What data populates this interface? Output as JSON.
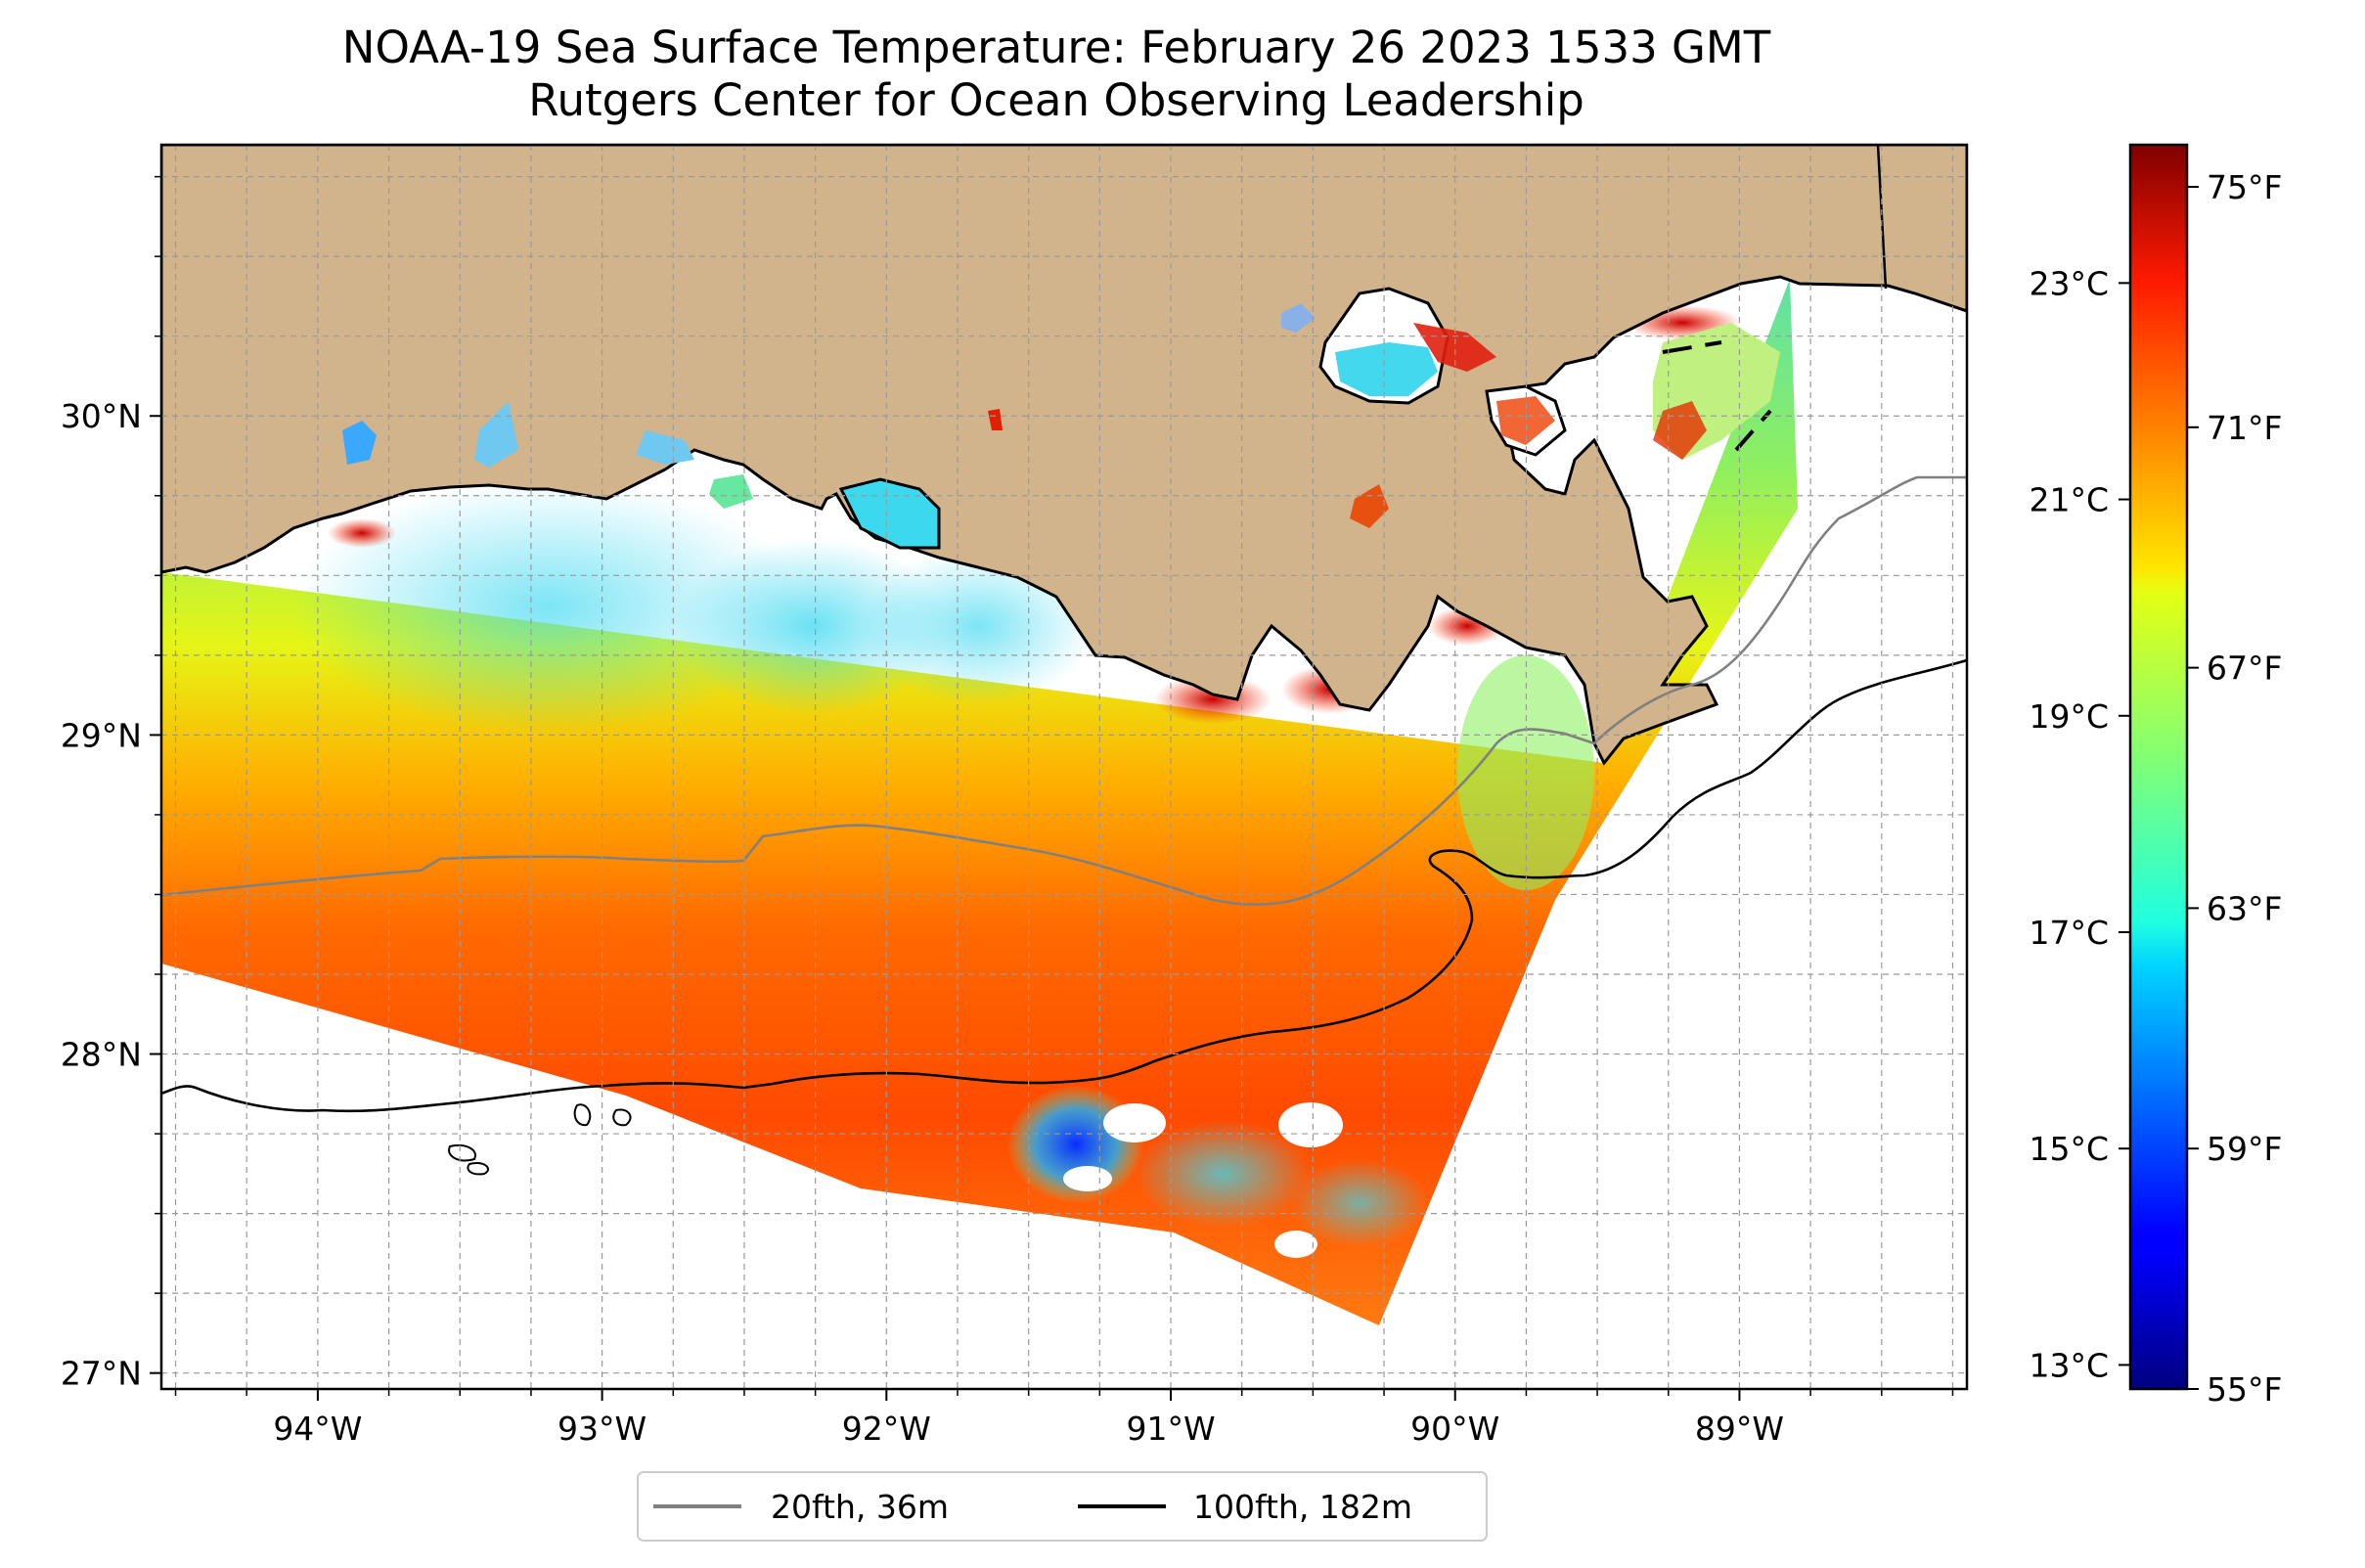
{
  "title": "NOAA-19 Sea Surface Temperature: February 26 2023 1533 GMT",
  "subtitle": "Rutgers Center for Ocean Observing Leadership",
  "map": {
    "lon_range": [
      -94.55,
      -88.2
    ],
    "lat_range": [
      26.95,
      30.85
    ],
    "lon_ticks": [
      "94°W",
      "93°W",
      "92°W",
      "91°W",
      "90°W",
      "89°W"
    ],
    "lon_tick_values": [
      -94,
      -93,
      -92,
      -91,
      -90,
      -89
    ],
    "lat_ticks": [
      "27°N",
      "28°N",
      "29°N",
      "30°N"
    ],
    "lat_tick_values": [
      27,
      28,
      29,
      30
    ],
    "grid": true,
    "land_color": "#d2b48c",
    "no_data_color": "#ffffff"
  },
  "colorbar": {
    "colormap": "jet",
    "celsius_ticks": [
      "13°C",
      "15°C",
      "17°C",
      "19°C",
      "21°C",
      "23°C"
    ],
    "celsius_values": [
      13,
      15,
      17,
      19,
      21,
      23
    ],
    "fahrenheit_ticks": [
      "55°F",
      "59°F",
      "63°F",
      "67°F",
      "71°F",
      "75°F"
    ],
    "fahrenheit_values": [
      55,
      59,
      63,
      67,
      71,
      75
    ],
    "range_f": [
      55,
      75.7
    ]
  },
  "legend": {
    "position": "bottom-center",
    "items": [
      {
        "label": "20fth, 36m",
        "color": "#808080"
      },
      {
        "label": "100fth, 182m",
        "color": "#000000"
      }
    ]
  }
}
